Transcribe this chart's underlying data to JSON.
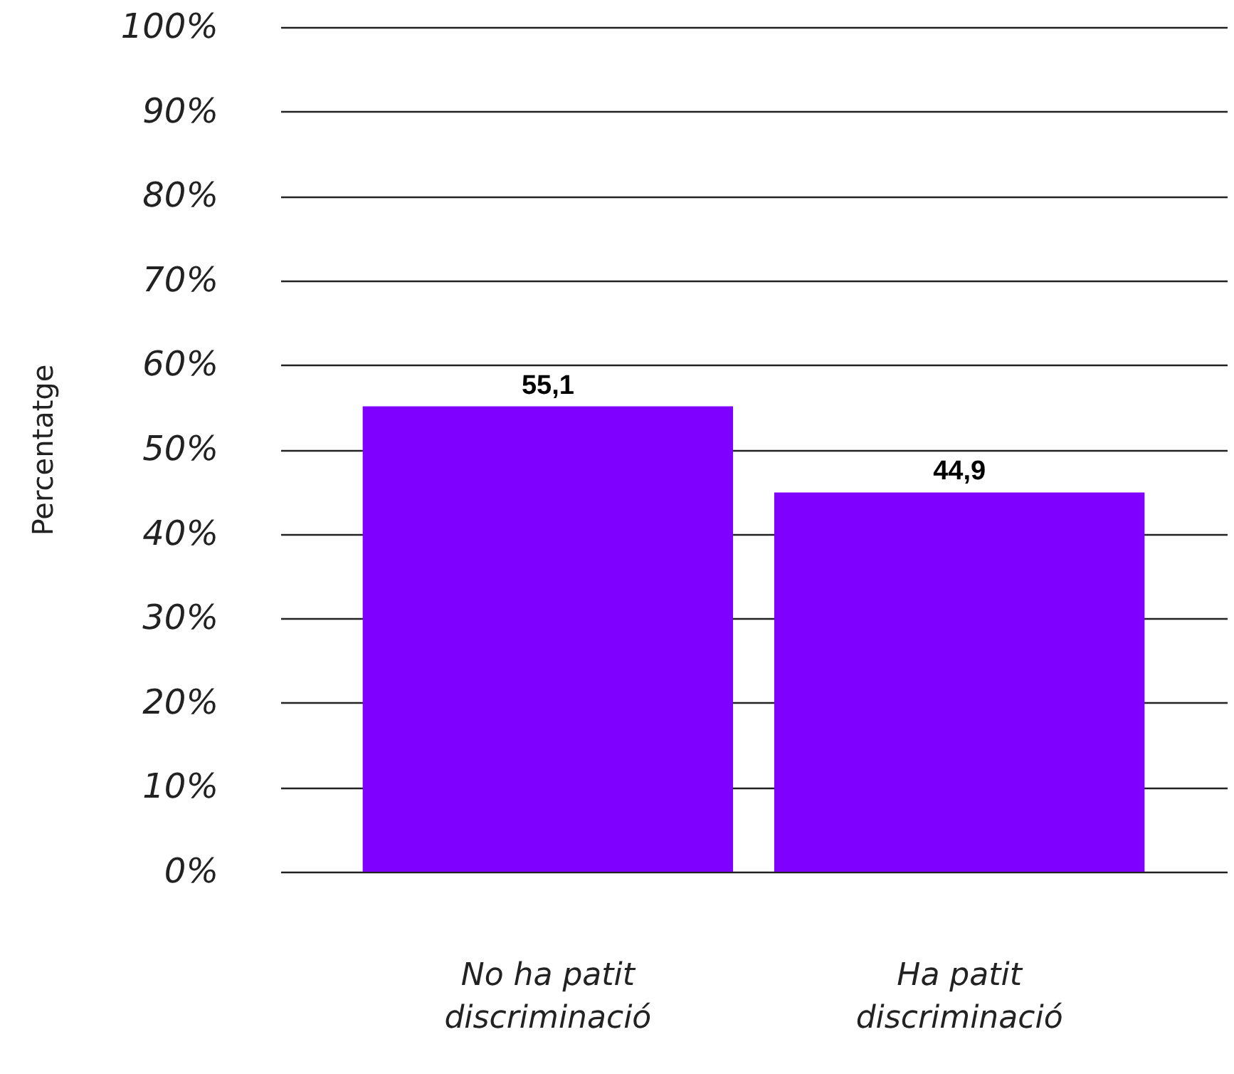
{
  "chart_data": {
    "type": "bar",
    "ylabel": "Percentatge",
    "categories": [
      "No ha patit discriminació",
      "Ha patit discriminació"
    ],
    "values": [
      55.1,
      44.9
    ],
    "value_labels": [
      "55,1",
      "44,9"
    ],
    "color": "#7f00ff",
    "ylim": [
      0,
      100
    ],
    "yticks": [
      {
        "value": 0,
        "label": "0%"
      },
      {
        "value": 10,
        "label": "10%"
      },
      {
        "value": 20,
        "label": "20%"
      },
      {
        "value": 30,
        "label": "30%"
      },
      {
        "value": 40,
        "label": "40%"
      },
      {
        "value": 50,
        "label": "50%"
      },
      {
        "value": 60,
        "label": "60%"
      },
      {
        "value": 70,
        "label": "70%"
      },
      {
        "value": 80,
        "label": "80%"
      },
      {
        "value": 90,
        "label": "90%"
      },
      {
        "value": 100,
        "label": "100%"
      }
    ],
    "grid": "y"
  }
}
